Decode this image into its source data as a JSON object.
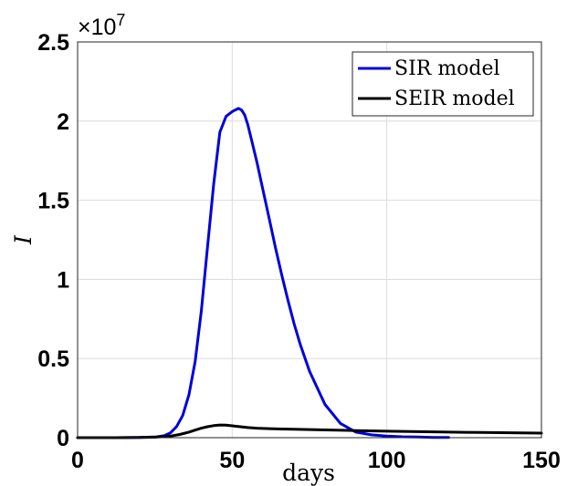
{
  "chart_data": {
    "type": "line",
    "xlabel": "days",
    "ylabel": "I",
    "y_exponent_label": "×10",
    "y_exponent_power": "7",
    "xlim": [
      0,
      150
    ],
    "ylim": [
      0,
      2.5
    ],
    "grid": true,
    "legend_position": "top-right",
    "x_ticks": [
      "0",
      "50",
      "100",
      "150"
    ],
    "y_ticks": [
      "0",
      "0.5",
      "1",
      "1.5",
      "2",
      "2.5"
    ],
    "x_tick_values": [
      0,
      50,
      100,
      150
    ],
    "y_tick_values": [
      0,
      0.5,
      1,
      1.5,
      2,
      2.5
    ],
    "series": [
      {
        "name": "SIR model",
        "color": "#0000dd",
        "x": [
          0,
          10,
          20,
          25,
          28,
          30,
          32,
          34,
          36,
          38,
          40,
          42,
          44,
          46,
          48,
          50,
          51,
          52,
          53,
          54,
          55,
          56,
          58,
          60,
          62,
          64,
          66,
          68,
          70,
          72,
          75,
          80,
          85,
          90,
          95,
          100,
          105,
          110,
          115,
          120
        ],
        "y": [
          0,
          0,
          0.001,
          0.004,
          0.012,
          0.03,
          0.07,
          0.14,
          0.27,
          0.48,
          0.8,
          1.2,
          1.6,
          1.93,
          2.03,
          2.06,
          2.07,
          2.08,
          2.07,
          2.04,
          1.98,
          1.9,
          1.74,
          1.56,
          1.38,
          1.2,
          1.03,
          0.87,
          0.72,
          0.59,
          0.42,
          0.21,
          0.09,
          0.035,
          0.018,
          0.01,
          0.006,
          0.004,
          0.002,
          0.001
        ]
      },
      {
        "name": "SEIR model",
        "color": "#000000",
        "x": [
          0,
          10,
          20,
          25,
          30,
          33,
          36,
          38,
          40,
          42,
          44,
          46,
          48,
          50,
          52,
          55,
          58,
          62,
          66,
          70,
          80,
          90,
          100,
          110,
          120,
          130,
          140,
          150
        ],
        "y": [
          0,
          0,
          0.001,
          0.003,
          0.01,
          0.02,
          0.035,
          0.048,
          0.06,
          0.069,
          0.076,
          0.08,
          0.079,
          0.075,
          0.07,
          0.064,
          0.06,
          0.057,
          0.055,
          0.053,
          0.049,
          0.045,
          0.041,
          0.038,
          0.035,
          0.033,
          0.031,
          0.029
        ]
      }
    ]
  }
}
